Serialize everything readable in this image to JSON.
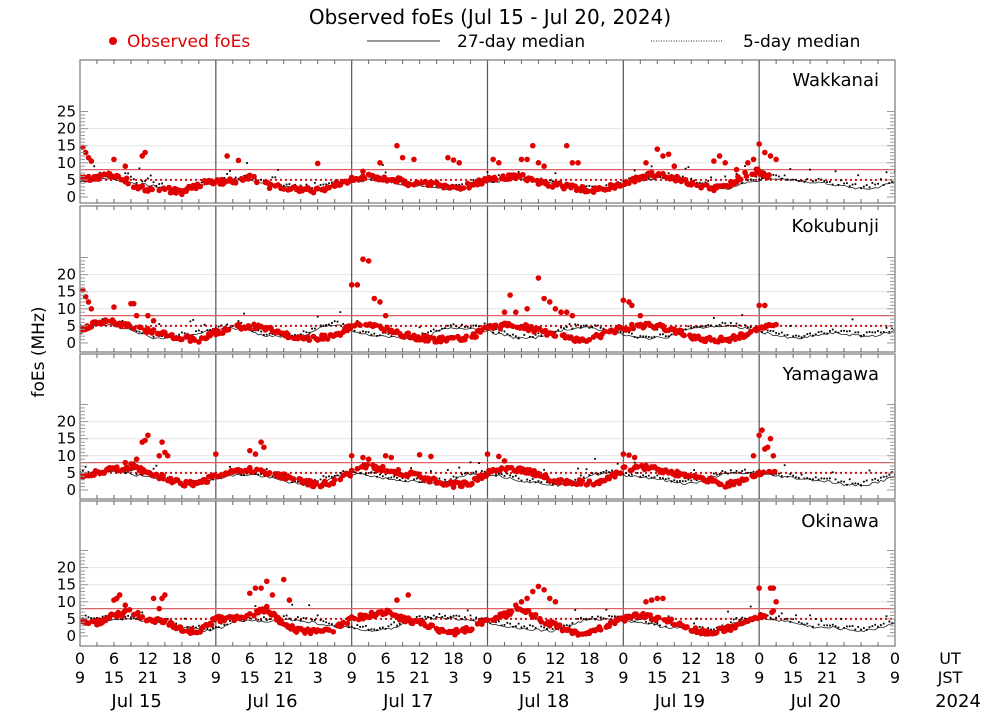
{
  "chart_data": {
    "type": "scatter",
    "title": "Observed foEs (Jul 15 - Jul 20, 2024)",
    "ylabel": "foEs (MHz)",
    "legend": {
      "placement": "top",
      "entries": [
        {
          "label": "Observed foEs",
          "style": "red-dots",
          "color": "#e00000"
        },
        {
          "label": "27-day median",
          "style": "solid-line",
          "color": "#000000"
        },
        {
          "label": "5-day median",
          "style": "dotted-line",
          "color": "#000000"
        }
      ]
    },
    "ylim": [
      0,
      25
    ],
    "yticks_top": [
      0,
      5,
      10,
      15,
      20,
      25
    ],
    "yticks": [
      0,
      5,
      10,
      15,
      20
    ],
    "threshold_lines": [
      {
        "value": 8,
        "style": "solid",
        "color": "#e06060"
      },
      {
        "value": 5,
        "style": "dotted",
        "color": "#d01010"
      }
    ],
    "x_hours_range": [
      0,
      144
    ],
    "xticks_ut": [
      "0",
      "6",
      "12",
      "18",
      "0",
      "6",
      "12",
      "18",
      "0",
      "6",
      "12",
      "18",
      "0",
      "6",
      "12",
      "18",
      "0",
      "6",
      "12",
      "18",
      "0",
      "6",
      "12",
      "18",
      "0"
    ],
    "xticks_jst": [
      "9",
      "15",
      "21",
      "3",
      "9",
      "15",
      "21",
      "3",
      "9",
      "15",
      "21",
      "3",
      "9",
      "15",
      "21",
      "3",
      "9",
      "15",
      "21",
      "3",
      "9",
      "15",
      "21",
      "3",
      "9"
    ],
    "x_axis_label_ut": "UT",
    "x_axis_label_jst": "JST",
    "days": [
      "Jul 15",
      "Jul 16",
      "Jul 17",
      "Jul 18",
      "Jul 19",
      "Jul 20"
    ],
    "year": "2024",
    "panels": [
      {
        "station": "Wakkanai",
        "observed_peaks": [
          [
            0.5,
            14.5
          ],
          [
            1,
            13
          ],
          [
            1.5,
            11.5
          ],
          [
            2,
            10.5
          ],
          [
            6,
            11
          ],
          [
            8,
            9
          ],
          [
            11,
            12
          ],
          [
            11.5,
            13
          ],
          [
            26,
            12
          ],
          [
            28,
            10.7
          ],
          [
            42,
            9.8
          ],
          [
            47,
            4.5
          ],
          [
            50,
            7.5
          ],
          [
            53,
            10
          ],
          [
            56,
            15
          ],
          [
            57,
            11.5
          ],
          [
            59,
            11
          ],
          [
            65,
            11.5
          ],
          [
            66,
            10.8
          ],
          [
            67,
            10
          ],
          [
            73,
            11
          ],
          [
            74,
            10
          ],
          [
            78,
            11
          ],
          [
            79,
            11
          ],
          [
            80,
            15
          ],
          [
            81,
            10
          ],
          [
            82,
            9
          ],
          [
            86,
            15
          ],
          [
            87,
            10
          ],
          [
            88,
            10
          ],
          [
            100,
            10
          ],
          [
            102,
            14
          ],
          [
            103,
            12
          ],
          [
            104,
            12.5
          ],
          [
            105,
            9
          ],
          [
            112,
            10.5
          ],
          [
            113,
            12
          ],
          [
            114,
            10
          ],
          [
            116,
            8
          ],
          [
            118,
            10
          ],
          [
            119,
            11
          ],
          [
            120,
            15.5
          ],
          [
            121,
            13
          ],
          [
            122,
            12
          ],
          [
            123,
            11
          ]
        ],
        "observed_series_hours": [
          0,
          2,
          4,
          6,
          8,
          10,
          12,
          14,
          16,
          18,
          20,
          22,
          24,
          26,
          28,
          30,
          32,
          34,
          36,
          38,
          40,
          42,
          44,
          46,
          48,
          50,
          52,
          54,
          56,
          58,
          60,
          62,
          64,
          66,
          68,
          70,
          72,
          74,
          76,
          78,
          80,
          82,
          84,
          86,
          88,
          90,
          92,
          94,
          96,
          98,
          100,
          102,
          104,
          106,
          108,
          110,
          112,
          114,
          116,
          118,
          120,
          122
        ],
        "observed_series_values": [
          5,
          5.5,
          6,
          6.5,
          5,
          3,
          2,
          2.5,
          2,
          1.5,
          3,
          4,
          4.5,
          4.5,
          5,
          6,
          4,
          3,
          3,
          2.5,
          2,
          2,
          3,
          4,
          5,
          6,
          6,
          5,
          5,
          4,
          4,
          4,
          3.5,
          3,
          3,
          4,
          5,
          5.5,
          6,
          6,
          5,
          4,
          3.5,
          3,
          2.5,
          2,
          2,
          3,
          4,
          5,
          6,
          7,
          6,
          5,
          4,
          3,
          2.5,
          3,
          5,
          7,
          7.5,
          6
        ],
        "median27_values": [
          5,
          5.5,
          6,
          6,
          5,
          4.5,
          4,
          3.5,
          3,
          2.5,
          3,
          4.5,
          5,
          5.5,
          6,
          5.5,
          4.5,
          4,
          3.5,
          3,
          2.5,
          3,
          4,
          5,
          5,
          5.5,
          6,
          5,
          4.5,
          4,
          4,
          3.5,
          3,
          3,
          3.5,
          4.5,
          5,
          5.5,
          6,
          5.5,
          5,
          4.5,
          4,
          3.5,
          3,
          2.5,
          3,
          4,
          5,
          5.5,
          6,
          6.5,
          6,
          5,
          4.5,
          4,
          3,
          3.5,
          5,
          5.5,
          6,
          6,
          5.5,
          5,
          5,
          4.5,
          4,
          3.5,
          3,
          3,
          4,
          5
        ]
      },
      {
        "station": "Kokubunji",
        "observed_peaks": [
          [
            0.5,
            15.5
          ],
          [
            1,
            13.5
          ],
          [
            1.5,
            12
          ],
          [
            2,
            10
          ],
          [
            6,
            10.5
          ],
          [
            9,
            11.5
          ],
          [
            9.5,
            11.5
          ],
          [
            10,
            8
          ],
          [
            12,
            8
          ],
          [
            13,
            6.5
          ],
          [
            48,
            17
          ],
          [
            49,
            17
          ],
          [
            50,
            24.5
          ],
          [
            51,
            24
          ],
          [
            52,
            13
          ],
          [
            53,
            12
          ],
          [
            54,
            8
          ],
          [
            75,
            9
          ],
          [
            76,
            14
          ],
          [
            77,
            9
          ],
          [
            79,
            10
          ],
          [
            81,
            19
          ],
          [
            82,
            13
          ],
          [
            83,
            12
          ],
          [
            84,
            10
          ],
          [
            85,
            9
          ],
          [
            86,
            9
          ],
          [
            87,
            8
          ],
          [
            96,
            12.5
          ],
          [
            97,
            12
          ],
          [
            97.5,
            11
          ],
          [
            99,
            8
          ],
          [
            120,
            11
          ],
          [
            121,
            11
          ]
        ],
        "observed_series_hours": [
          0,
          3,
          6,
          9,
          12,
          15,
          18,
          21,
          24,
          27,
          30,
          33,
          36,
          39,
          42,
          45,
          48,
          51,
          54,
          57,
          60,
          63,
          66,
          69,
          72,
          75,
          78,
          81,
          84,
          87,
          90,
          93,
          96,
          99,
          102,
          105,
          108,
          111,
          114,
          117,
          120,
          123
        ],
        "observed_series_values": [
          4,
          6,
          6,
          5,
          3.5,
          2.5,
          1.5,
          1,
          3,
          4.5,
          5,
          4,
          2.5,
          1.5,
          1.5,
          2,
          5,
          6,
          4,
          2.5,
          1.5,
          1,
          1,
          1.5,
          4.5,
          5,
          5,
          3.5,
          2.5,
          1,
          1,
          3,
          4.5,
          5,
          5,
          3.5,
          2,
          1,
          1,
          2,
          4.5,
          5
        ],
        "median27_values": [
          5,
          6,
          6,
          5,
          3.5,
          2,
          2,
          2.5,
          3.5,
          4.5,
          5,
          4.5,
          3,
          2.5,
          2.5,
          3,
          5,
          6,
          4,
          3,
          2.5,
          2.5,
          2,
          2.5,
          4.5,
          5,
          5,
          4,
          3,
          2,
          2,
          3,
          4.5,
          5,
          5,
          4,
          3,
          2,
          2,
          2.5,
          4.5,
          5,
          5.5,
          5.5,
          5,
          4,
          3,
          2,
          2,
          3,
          3.5,
          3,
          2.5,
          3,
          4
        ]
      },
      {
        "station": "Yamagawa",
        "observed_peaks": [
          [
            8,
            8
          ],
          [
            10,
            9
          ],
          [
            11,
            14
          ],
          [
            11.5,
            14.5
          ],
          [
            12,
            16
          ],
          [
            14,
            10
          ],
          [
            14.5,
            14
          ],
          [
            15,
            11
          ],
          [
            15.5,
            10
          ],
          [
            24,
            10.5
          ],
          [
            30,
            11.5
          ],
          [
            31,
            10.5
          ],
          [
            32,
            14
          ],
          [
            32.5,
            12.5
          ],
          [
            48,
            10
          ],
          [
            50,
            9.5
          ],
          [
            51,
            9
          ],
          [
            54,
            10
          ],
          [
            55,
            9.5
          ],
          [
            60,
            10.3
          ],
          [
            62,
            9.8
          ],
          [
            72,
            10.5
          ],
          [
            74,
            9.8
          ],
          [
            75,
            8.5
          ],
          [
            96,
            10.5
          ],
          [
            97,
            10.2
          ],
          [
            98,
            9.5
          ],
          [
            119,
            10
          ],
          [
            120,
            16
          ],
          [
            120.5,
            17.5
          ],
          [
            121,
            12
          ],
          [
            121.5,
            12.5
          ],
          [
            122,
            15
          ],
          [
            122.5,
            10
          ]
        ],
        "observed_series_hours": [
          0,
          3,
          6,
          9,
          12,
          15,
          18,
          21,
          24,
          27,
          30,
          33,
          36,
          39,
          42,
          45,
          48,
          51,
          54,
          57,
          60,
          63,
          66,
          69,
          72,
          75,
          78,
          81,
          84,
          87,
          90,
          93,
          96,
          99,
          102,
          105,
          108,
          111,
          114,
          117,
          120,
          123
        ],
        "observed_series_values": [
          4,
          5,
          6,
          7,
          5,
          3.5,
          2,
          1.5,
          4.5,
          5.5,
          6,
          5,
          4,
          2.5,
          1.5,
          2.5,
          5,
          7,
          6,
          5,
          4,
          2.5,
          1.5,
          2,
          5,
          6,
          6,
          4.5,
          2.5,
          2.5,
          2,
          3,
          6,
          7,
          6,
          5,
          4,
          3,
          1.5,
          2.5,
          5,
          6
        ],
        "median27_values": [
          5,
          5.5,
          6,
          5.5,
          4.5,
          4,
          3,
          2,
          3,
          4.5,
          5,
          5,
          4,
          3,
          2,
          2.5,
          4.5,
          5.5,
          5,
          4,
          3.5,
          3,
          2.5,
          3,
          5,
          5.5,
          5,
          4,
          3,
          2.5,
          2,
          3,
          5,
          5.5,
          5,
          4.5,
          4,
          3,
          2.5,
          3,
          5,
          5.5,
          5.5,
          5,
          4.5,
          4,
          3.5,
          3,
          2,
          2,
          3,
          4.5
        ]
      },
      {
        "station": "Okinawa",
        "observed_peaks": [
          [
            6,
            10.5
          ],
          [
            6.5,
            11
          ],
          [
            7,
            12
          ],
          [
            8,
            9
          ],
          [
            13,
            11
          ],
          [
            14,
            8
          ],
          [
            14.5,
            11
          ],
          [
            15,
            12
          ],
          [
            30,
            12.5
          ],
          [
            31,
            14
          ],
          [
            32,
            14
          ],
          [
            33,
            16
          ],
          [
            34,
            12
          ],
          [
            36,
            16.5
          ],
          [
            37,
            10.5
          ],
          [
            56,
            10.5
          ],
          [
            58,
            12
          ],
          [
            77,
            9
          ],
          [
            78,
            10
          ],
          [
            79,
            11
          ],
          [
            80,
            13
          ],
          [
            81,
            14.5
          ],
          [
            82,
            13.5
          ],
          [
            83,
            11
          ],
          [
            84,
            10
          ],
          [
            100,
            10
          ],
          [
            101,
            10.5
          ],
          [
            102,
            11
          ],
          [
            103,
            11
          ],
          [
            120,
            14
          ],
          [
            122,
            14
          ],
          [
            122.5,
            14
          ],
          [
            123,
            10
          ]
        ],
        "observed_series_hours": [
          0,
          3,
          6,
          9,
          12,
          15,
          18,
          21,
          24,
          27,
          30,
          33,
          36,
          39,
          42,
          45,
          48,
          51,
          54,
          57,
          60,
          63,
          66,
          69,
          72,
          75,
          78,
          81,
          84,
          87,
          90,
          93,
          96,
          99,
          102,
          105,
          108,
          111,
          114,
          117,
          120,
          123
        ],
        "observed_series_values": [
          4,
          4,
          6,
          7,
          5,
          4,
          2,
          1,
          5,
          5,
          6,
          8,
          3,
          1.5,
          1.5,
          2,
          5,
          6,
          7,
          5,
          4,
          2,
          1,
          2,
          5,
          6,
          8,
          5,
          3,
          1,
          1,
          3,
          5,
          6,
          5,
          4,
          2,
          1,
          2,
          3,
          6,
          7
        ],
        "median27_values": [
          5,
          5,
          5.5,
          5.5,
          5,
          4.5,
          3.5,
          3,
          2,
          3,
          5,
          5,
          5,
          5.5,
          5,
          4.5,
          3.5,
          3,
          2.5,
          2,
          3,
          5,
          5.5,
          6,
          5.5,
          5,
          4.5,
          3.5,
          3,
          2.5,
          2,
          3,
          5,
          5.5,
          5.5,
          5,
          4.5,
          3.5,
          3,
          2.5,
          2,
          3,
          5,
          5.5,
          5.5,
          5,
          4,
          3,
          3,
          2.5,
          2,
          3,
          4.5
        ]
      }
    ]
  }
}
